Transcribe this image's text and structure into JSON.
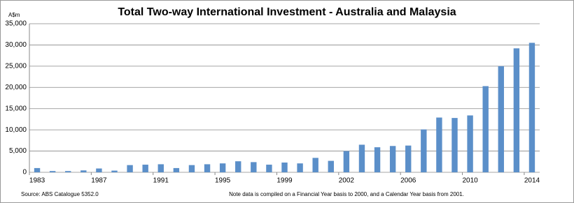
{
  "chart_data": {
    "type": "bar",
    "title": "Total Two-way International Investment - Australia and Malaysia",
    "y_label": "A$m",
    "source": "Source: ABS Catalogue 5352.0",
    "note": "Note data is compiled on a Financial Year basis to 2000, and a Calendar Year basis from 2001.",
    "categories": [
      "1983",
      null,
      null,
      null,
      "1987",
      null,
      null,
      null,
      "1991",
      null,
      null,
      null,
      "1995",
      null,
      null,
      null,
      "1999",
      null,
      null,
      null,
      "2002",
      null,
      null,
      null,
      "2006",
      null,
      null,
      null,
      "2010",
      null,
      null,
      null,
      "2014"
    ],
    "values": [
      1000,
      300,
      300,
      450,
      900,
      400,
      1700,
      1800,
      1900,
      1000,
      1700,
      1900,
      2100,
      2600,
      2400,
      1800,
      2300,
      2100,
      3400,
      2700,
      5000,
      6500,
      5900,
      6200,
      6300,
      10100,
      12900,
      12800,
      13400,
      20300,
      25000,
      29200,
      30500
    ],
    "color": "#5b8fc9",
    "ylim": [
      0,
      35000
    ],
    "yticks": [
      0,
      {
        "value": 5000,
        "label": "5,000"
      },
      {
        "value": 10000,
        "label": "10,000"
      },
      {
        "value": 15000,
        "label": "15,000"
      },
      {
        "value": 20000,
        "label": "20,000"
      },
      {
        "value": 25000,
        "label": "25,000"
      },
      {
        "value": 30000,
        "label": "30,000"
      },
      {
        "value": 35000,
        "label": "35,000"
      }
    ],
    "grid": true
  }
}
